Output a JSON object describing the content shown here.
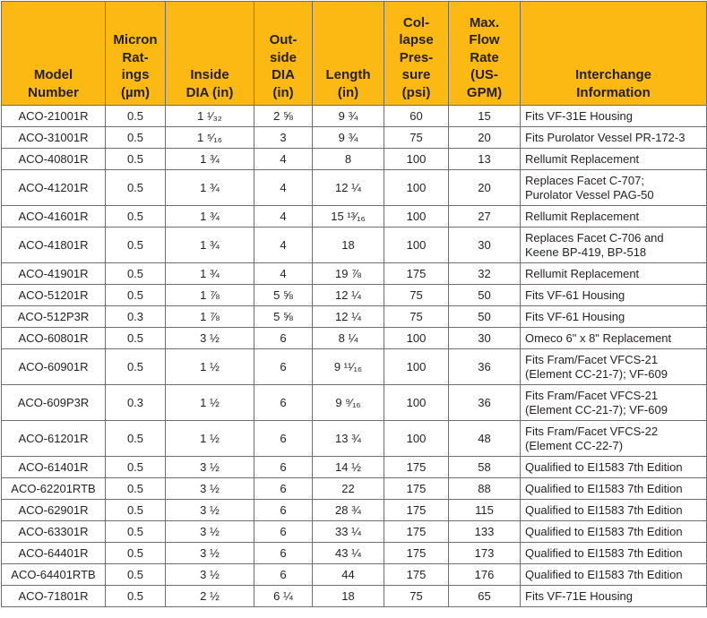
{
  "table": {
    "header": [
      [
        "Model",
        "Number"
      ],
      [
        "Micron",
        "Rat-",
        "ings",
        "(µm)"
      ],
      [
        "Inside",
        "DIA (in)"
      ],
      [
        "Out-",
        "side",
        "DIA",
        "(in)"
      ],
      [
        "Length",
        "(in)"
      ],
      [
        "Col-",
        "lapse",
        "Pres-",
        "sure",
        "(psi)"
      ],
      [
        "Max.",
        "Flow",
        "Rate",
        "(US-",
        "GPM)"
      ],
      [
        "Interchange",
        "Information"
      ]
    ],
    "rows": [
      [
        "ACO-21001R",
        "0.5",
        "1 ¹⁄₃₂",
        "2 ⅝",
        "9 ¾",
        "60",
        "15",
        "Fits VF-31E Housing"
      ],
      [
        "ACO-31001R",
        "0.5",
        "1 ⁵⁄₁₆",
        "3",
        "9 ¾",
        "75",
        "20",
        "Fits Purolator Vessel PR-172-3"
      ],
      [
        "ACO-40801R",
        "0.5",
        "1 ¾",
        "4",
        "8",
        "100",
        "13",
        "Rellumit Replacement"
      ],
      [
        "ACO-41201R",
        "0.5",
        "1 ¾",
        "4",
        "12 ¼",
        "100",
        "20",
        "Replaces Facet C-707;\nPurolator Vessel PAG-50"
      ],
      [
        "ACO-41601R",
        "0.5",
        "1 ¾",
        "4",
        "15 ¹³⁄₁₆",
        "100",
        "27",
        "Rellumit Replacement"
      ],
      [
        "ACO-41801R",
        "0.5",
        "1 ¾",
        "4",
        "18",
        "100",
        "30",
        "Replaces Facet C-706 and\nKeene BP-419, BP-518"
      ],
      [
        "ACO-41901R",
        "0.5",
        "1 ¾",
        "4",
        "19 ⅞",
        "175",
        "32",
        "Rellumit Replacement"
      ],
      [
        "ACO-51201R",
        "0.5",
        "1 ⅞",
        "5 ⅝",
        "12 ¼",
        "75",
        "50",
        "Fits VF-61 Housing"
      ],
      [
        "ACO-512P3R",
        "0.3",
        "1 ⅞",
        "5 ⅝",
        "12 ¼",
        "75",
        "50",
        "Fits VF-61 Housing"
      ],
      [
        "ACO-60801R",
        "0.5",
        "3 ½",
        "6",
        "8 ¼",
        "100",
        "30",
        "Omeco 6\" x 8\" Replacement"
      ],
      [
        "ACO-60901R",
        "0.5",
        "1 ½",
        "6",
        "9 ¹¹⁄₁₆",
        "100",
        "36",
        "Fits Fram/Facet VFCS-21\n(Element CC-21-7); VF-609"
      ],
      [
        "ACO-609P3R",
        "0.3",
        "1 ½",
        "6",
        "9 ⁹⁄₁₆",
        "100",
        "36",
        "Fits Fram/Facet VFCS-21\n(Element CC-21-7); VF-609"
      ],
      [
        "ACO-61201R",
        "0.5",
        "1 ½",
        "6",
        "13 ¾",
        "100",
        "48",
        "Fits Fram/Facet VFCS-22\n(Element CC-22-7)"
      ],
      [
        "ACO-61401R",
        "0.5",
        "3 ½",
        "6",
        "14 ½",
        "175",
        "58",
        "Qualified to EI1583 7th Edition"
      ],
      [
        "ACO-62201RTB",
        "0.5",
        "3 ½",
        "6",
        "22",
        "175",
        "88",
        "Qualified to EI1583 7th Edition"
      ],
      [
        "ACO-62901R",
        "0.5",
        "3 ½",
        "6",
        "28 ¾",
        "175",
        "115",
        "Qualified to EI1583 7th Edition"
      ],
      [
        "ACO-63301R",
        "0.5",
        "3 ½",
        "6",
        "33 ¼",
        "175",
        "133",
        "Qualified to EI1583 7th Edition"
      ],
      [
        "ACO-64401R",
        "0.5",
        "3 ½",
        "6",
        "43 ¼",
        "175",
        "173",
        "Qualified to EI1583 7th Edition"
      ],
      [
        "ACO-64401RTB",
        "0.5",
        "3 ½",
        "6",
        "44",
        "175",
        "176",
        "Qualified to EI1583 7th Edition"
      ],
      [
        "ACO-71801R",
        "0.5",
        "2 ½",
        "6 ¼",
        "18",
        "75",
        "65",
        "Fits VF-71E Housing"
      ]
    ]
  }
}
